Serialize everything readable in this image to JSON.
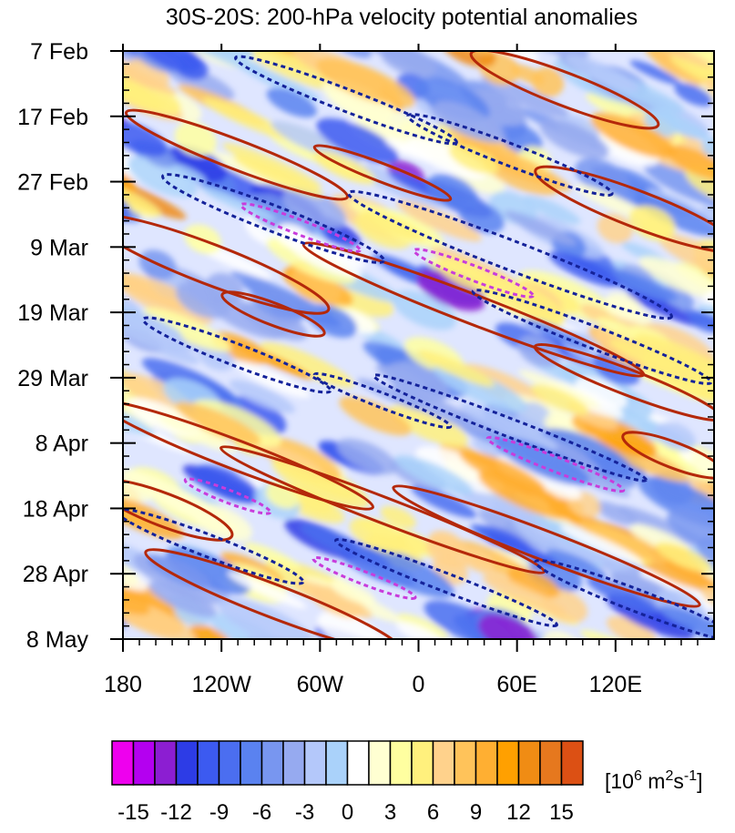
{
  "chart_data": {
    "type": "heatmap",
    "title": "30S-20S: 200-hPa velocity potential anomalies",
    "x_axis": {
      "labels": [
        "180",
        "120W",
        "60W",
        "0",
        "60E",
        "120E"
      ],
      "longitudes": [
        -180,
        -120,
        -60,
        0,
        60,
        120
      ],
      "range": [
        -180,
        180
      ]
    },
    "y_axis": {
      "labels": [
        "7 Feb",
        "17 Feb",
        "27 Feb",
        "9 Mar",
        "19 Mar",
        "29 Mar",
        "8 Apr",
        "18 Apr",
        "28 Apr",
        "8 May"
      ],
      "dates": [
        "2000-02-07",
        "2000-02-17",
        "2000-02-27",
        "2000-03-09",
        "2000-03-19",
        "2000-03-29",
        "2000-04-08",
        "2000-04-18",
        "2000-04-28",
        "2000-05-08"
      ],
      "direction": "time increases downward"
    },
    "colorbar": {
      "levels": [
        -16,
        -15,
        -14,
        -13,
        -12,
        -11,
        -10,
        -9,
        -8,
        -7,
        -6,
        -5,
        -4,
        -3,
        -2,
        -1,
        0,
        1,
        2,
        3,
        4,
        5,
        6,
        7,
        8,
        9,
        10,
        11,
        12,
        13,
        14,
        15,
        16
      ],
      "tick_labels": [
        "-15",
        "-12",
        "-9",
        "-6",
        "-3",
        "0",
        "3",
        "6",
        "9",
        "12",
        "15"
      ],
      "colors": [
        "#ee00ee",
        "#b400f0",
        "#8c1ed2",
        "#2d3ce6",
        "#3c5af0",
        "#4b6ef0",
        "#5a82f0",
        "#7896f0",
        "#96aaf0",
        "#b4c8fa",
        "#aad2fa",
        "#ffffff",
        "#ffffd2",
        "#ffffa0",
        "#fff07d",
        "#ffd28c",
        "#ffc35a",
        "#ffaf32",
        "#ffa000",
        "#f08c14",
        "#e6781e",
        "#dc5014"
      ],
      "units": "[10^6 m^2 s^-1]"
    },
    "contours": {
      "positive": {
        "style": "solid",
        "color": "#b4280a"
      },
      "negative": {
        "style": "dashed",
        "color": "#14229a"
      },
      "strong_negative": {
        "style": "dashed",
        "color": "#c83cdc"
      }
    },
    "propagation": "anomalies propagate eastward with time"
  }
}
